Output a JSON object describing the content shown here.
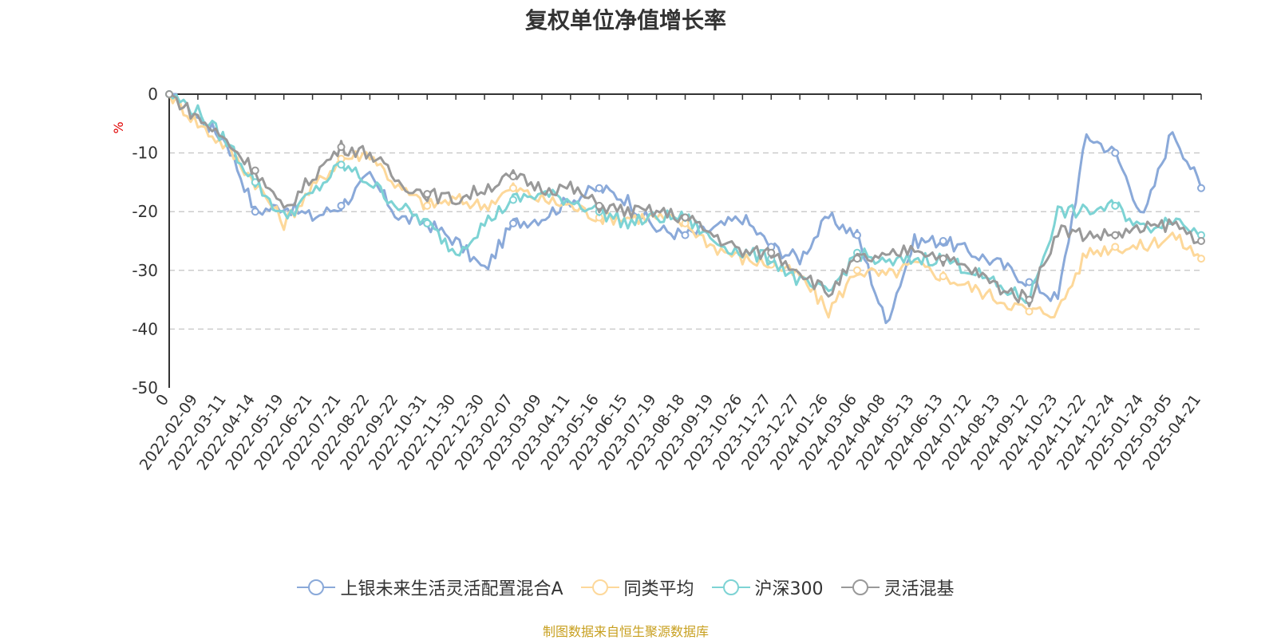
{
  "title": "复权单位净值增长率",
  "source": "制图数据来自恒生聚源数据库",
  "chart_data": {
    "type": "line",
    "title": "复权单位净值增长率",
    "ylabel": "%",
    "ylim": [
      -50,
      0
    ],
    "yticks": [
      0,
      -10,
      -20,
      -30,
      -40,
      -50
    ],
    "grid": true,
    "legend_position": "bottom",
    "x_categories": [
      "0",
      "2022-02-09",
      "2022-03-11",
      "2022-04-14",
      "2022-05-19",
      "2022-06-21",
      "2022-07-21",
      "2022-08-22",
      "2022-09-22",
      "2022-10-31",
      "2022-11-30",
      "2022-12-30",
      "2023-02-07",
      "2023-03-09",
      "2023-04-11",
      "2023-05-16",
      "2023-06-15",
      "2023-07-19",
      "2023-08-18",
      "2023-09-19",
      "2023-10-26",
      "2023-11-27",
      "2023-12-27",
      "2024-01-26",
      "2024-03-06",
      "2024-04-08",
      "2024-05-13",
      "2024-06-13",
      "2024-07-12",
      "2024-08-13",
      "2024-09-12",
      "2024-10-23",
      "2024-11-22",
      "2024-12-24",
      "2025-01-24",
      "2025-03-05",
      "2025-04-21"
    ],
    "series": [
      {
        "name": "上银未来生活灵活配置混合A",
        "color": "#8aa9d9",
        "values": [
          0,
          -4,
          -8,
          -20,
          -19,
          -21,
          -19,
          -14,
          -21,
          -22,
          -25,
          -30,
          -22,
          -21,
          -18,
          -16,
          -18,
          -23,
          -24,
          -23,
          -21,
          -26,
          -28,
          -21,
          -24,
          -39,
          -25,
          -25,
          -27,
          -29,
          -32,
          -35,
          -7,
          -10,
          -21,
          -6,
          -16
        ]
      },
      {
        "name": "同类平均",
        "color": "#fdd89a",
        "values": [
          0,
          -5,
          -9,
          -15,
          -22,
          -16,
          -11,
          -10,
          -16,
          -19,
          -18,
          -19,
          -16,
          -18,
          -19,
          -21,
          -21,
          -21,
          -22,
          -26,
          -28,
          -29,
          -31,
          -37,
          -30,
          -31,
          -29,
          -31,
          -33,
          -35,
          -37,
          -37,
          -27,
          -26,
          -26,
          -24,
          -28
        ]
      },
      {
        "name": "沪深300",
        "color": "#7dd3d4",
        "values": [
          0,
          -3,
          -8,
          -15,
          -21,
          -17,
          -12,
          -15,
          -19,
          -22,
          -27,
          -22,
          -18,
          -17,
          -18,
          -20,
          -22,
          -21,
          -21,
          -25,
          -27,
          -28,
          -32,
          -34,
          -27,
          -29,
          -28,
          -28,
          -30,
          -33,
          -35,
          -20,
          -20,
          -19,
          -23,
          -21,
          -24
        ]
      },
      {
        "name": "灵活混基",
        "color": "#999999",
        "values": [
          0,
          -4,
          -8,
          -13,
          -20,
          -14,
          -9,
          -10,
          -15,
          -17,
          -18,
          -16,
          -14,
          -16,
          -16,
          -19,
          -20,
          -20,
          -21,
          -24,
          -27,
          -27,
          -30,
          -34,
          -28,
          -28,
          -26,
          -28,
          -30,
          -33,
          -35,
          -23,
          -24,
          -24,
          -23,
          -22,
          -25
        ]
      }
    ]
  },
  "legend": {
    "items": [
      "上银未来生活灵活配置混合A",
      "同类平均",
      "沪深300",
      "灵活混基"
    ]
  },
  "colors": {
    "axis": "#333333",
    "grid": "#cccccc",
    "ylabel": "#e00000",
    "source": "#c8a020"
  }
}
